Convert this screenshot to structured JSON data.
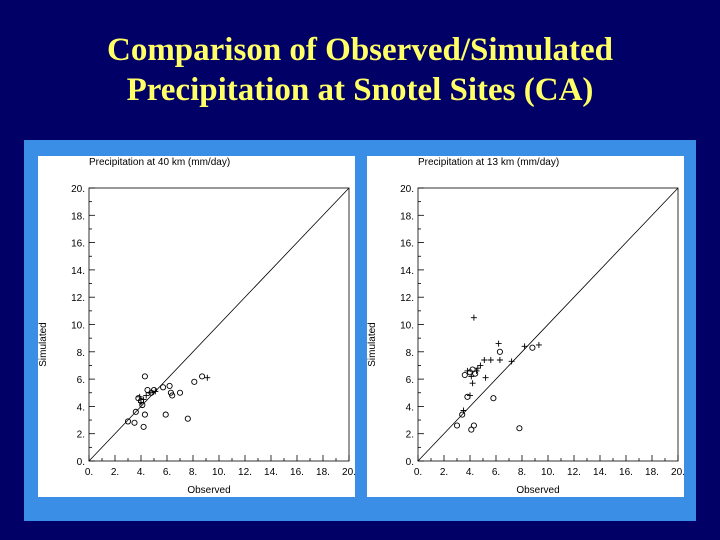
{
  "slide": {
    "title_line1": "Comparison of Observed/Simulated",
    "title_line2": "Precipitation at Snotel Sites (CA)"
  },
  "colors": {
    "background": "#000066",
    "title": "#ffff66",
    "panel": "#3a8ee6",
    "plot_bg": "#ffffff",
    "ink": "#000000"
  },
  "chart_data": [
    {
      "type": "scatter",
      "title": "Precipitation at 40 km (mm/day)",
      "xlabel": "Observed",
      "ylabel": "Simulated",
      "xlim": [
        0,
        20
      ],
      "ylim": [
        0,
        20
      ],
      "xticks": [
        "0.",
        "2.",
        "4.",
        "6.",
        "8.",
        "10.",
        "12.",
        "14.",
        "16.",
        "18.",
        "20."
      ],
      "yticks": [
        "0.",
        "2.",
        "4.",
        "6.",
        "8.",
        "10.",
        "12.",
        "14.",
        "16.",
        "18.",
        "20."
      ],
      "one_to_one_line": true,
      "series": [
        {
          "name": "circles",
          "marker": "o",
          "points": [
            [
              3.0,
              2.9
            ],
            [
              3.5,
              2.8
            ],
            [
              3.6,
              3.6
            ],
            [
              3.8,
              4.6
            ],
            [
              4.0,
              4.4
            ],
            [
              4.1,
              4.1
            ],
            [
              4.2,
              2.5
            ],
            [
              4.3,
              3.4
            ],
            [
              4.3,
              6.2
            ],
            [
              4.5,
              5.2
            ],
            [
              4.8,
              5.0
            ],
            [
              5.0,
              5.2
            ],
            [
              5.7,
              5.4
            ],
            [
              5.9,
              3.4
            ],
            [
              6.2,
              5.5
            ],
            [
              6.3,
              5.0
            ],
            [
              6.4,
              4.8
            ],
            [
              7.0,
              5.0
            ],
            [
              7.6,
              3.1
            ],
            [
              8.1,
              5.8
            ],
            [
              8.7,
              6.2
            ]
          ]
        },
        {
          "name": "crosses",
          "marker": "+",
          "points": [
            [
              3.9,
              4.7
            ],
            [
              4.0,
              4.3
            ],
            [
              4.2,
              4.5
            ],
            [
              4.4,
              4.8
            ],
            [
              4.7,
              5.0
            ],
            [
              5.1,
              5.1
            ],
            [
              9.1,
              6.1
            ]
          ]
        }
      ]
    },
    {
      "type": "scatter",
      "title": "Precipitation at 13 km (mm/day)",
      "xlabel": "Observed",
      "ylabel": "Simulated",
      "xlim": [
        0,
        20
      ],
      "ylim": [
        0,
        20
      ],
      "xticks": [
        "0.",
        "2.",
        "4.",
        "6.",
        "8.",
        "10.",
        "12.",
        "14.",
        "16.",
        "18.",
        "20."
      ],
      "yticks": [
        "0.",
        "2.",
        "4.",
        "6.",
        "8.",
        "10.",
        "12.",
        "14.",
        "16.",
        "18.",
        "20."
      ],
      "one_to_one_line": true,
      "series": [
        {
          "name": "circles",
          "marker": "o",
          "points": [
            [
              3.0,
              2.6
            ],
            [
              3.4,
              3.4
            ],
            [
              3.6,
              6.3
            ],
            [
              3.8,
              4.7
            ],
            [
              4.0,
              6.5
            ],
            [
              4.1,
              2.3
            ],
            [
              4.2,
              6.7
            ],
            [
              4.3,
              2.6
            ],
            [
              4.4,
              6.4
            ],
            [
              5.8,
              4.6
            ],
            [
              6.3,
              8.0
            ],
            [
              7.8,
              2.4
            ],
            [
              8.8,
              8.3
            ]
          ]
        },
        {
          "name": "crosses",
          "marker": "+",
          "points": [
            [
              3.5,
              3.7
            ],
            [
              3.8,
              6.6
            ],
            [
              4.0,
              4.8
            ],
            [
              4.1,
              6.2
            ],
            [
              4.2,
              5.7
            ],
            [
              4.3,
              10.5
            ],
            [
              4.5,
              6.6
            ],
            [
              4.6,
              6.8
            ],
            [
              4.8,
              7.0
            ],
            [
              5.1,
              7.4
            ],
            [
              5.2,
              6.1
            ],
            [
              5.6,
              7.4
            ],
            [
              6.2,
              8.6
            ],
            [
              6.3,
              7.4
            ],
            [
              7.2,
              7.3
            ],
            [
              8.2,
              8.4
            ],
            [
              9.3,
              8.5
            ]
          ]
        }
      ]
    }
  ]
}
